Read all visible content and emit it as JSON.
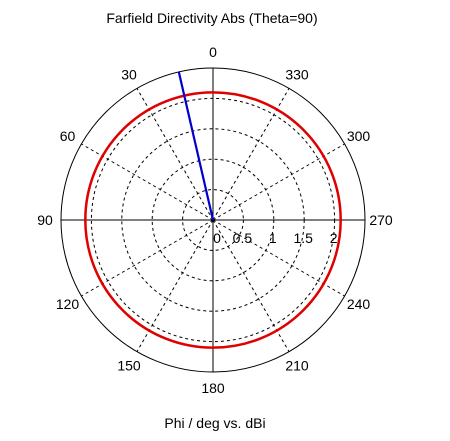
{
  "chart_data": {
    "type": "polar",
    "title": "Farfield Directivity Abs (Theta=90)",
    "xlabel": "Phi / deg vs. dBi",
    "angle_unit": "deg",
    "angle_direction": "counterclockwise",
    "zero_location": "top",
    "angle_ticks": [
      0,
      30,
      60,
      90,
      120,
      150,
      180,
      210,
      240,
      270,
      300,
      330
    ],
    "radial_ticks": [
      0,
      0.5,
      1,
      1.5,
      2
    ],
    "rlim": [
      0,
      2.5
    ],
    "grid": true,
    "series": [
      {
        "kind": "curve",
        "color": "#e00000",
        "r_const": 2.1,
        "theta": [
          0,
          30,
          60,
          90,
          120,
          150,
          180,
          210,
          240,
          270,
          300,
          330,
          360
        ],
        "r": [
          2.1,
          2.1,
          2.1,
          2.1,
          2.1,
          2.1,
          2.1,
          2.1,
          2.1,
          2.1,
          2.1,
          2.1,
          2.1
        ]
      },
      {
        "kind": "ray",
        "color": "#0000cc",
        "theta": 13,
        "r": 2.5
      }
    ]
  }
}
